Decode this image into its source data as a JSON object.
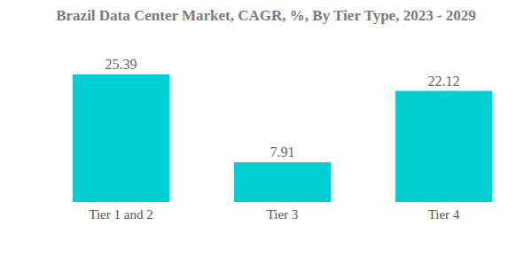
{
  "chart_data": {
    "type": "bar",
    "title": "Brazil Data Center Market, CAGR, %, By Tier Type, 2023 - 2029",
    "categories": [
      "Tier 1 and 2",
      "Tier 3",
      "Tier 4"
    ],
    "values": [
      25.39,
      7.91,
      22.12
    ],
    "color": "#00ced1",
    "data_labels": true,
    "tick_labels": "x",
    "grid": false
  }
}
